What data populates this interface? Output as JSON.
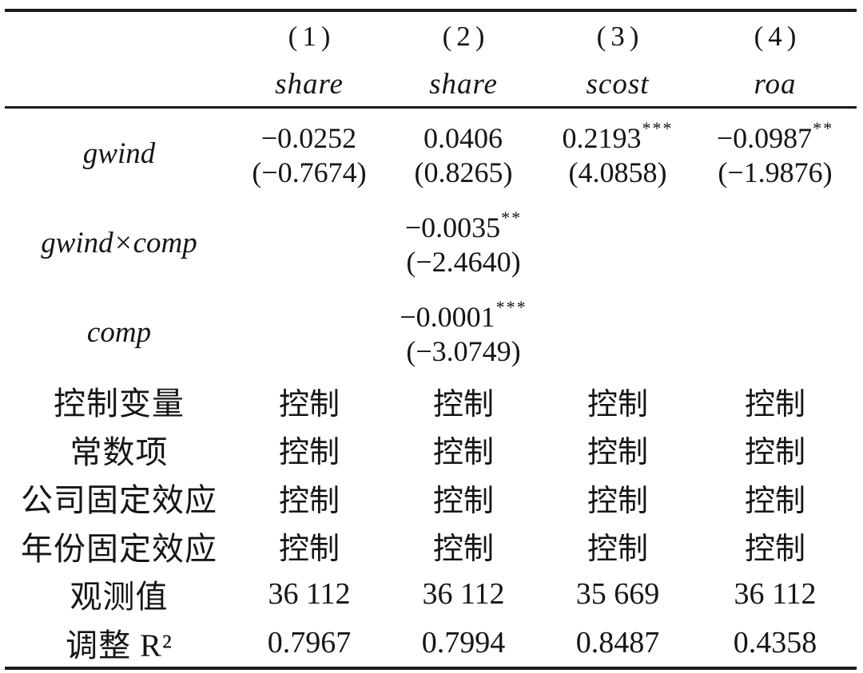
{
  "colors": {
    "background": "#ffffff",
    "text": "#151515",
    "rule": "#1b1b1b"
  },
  "header": {
    "model_numbers": [
      "(1)",
      "(2)",
      "(3)",
      "(4)"
    ],
    "dep_vars": [
      "share",
      "share",
      "scost",
      "roa"
    ]
  },
  "coef_rows": [
    {
      "label": "gwind",
      "cells": [
        {
          "coef": "−0.0252",
          "stars": "",
          "t": "(−0.7674)"
        },
        {
          "coef": "0.0406",
          "stars": "",
          "t": "(0.8265)"
        },
        {
          "coef": "0.2193",
          "stars": "***",
          "t": "(4.0858)"
        },
        {
          "coef": "−0.0987",
          "stars": "**",
          "t": "(−1.9876)"
        }
      ]
    },
    {
      "label": "gwind×comp",
      "cells": [
        {
          "coef": "",
          "stars": "",
          "t": ""
        },
        {
          "coef": "−0.0035",
          "stars": "**",
          "t": "(−2.4640)"
        },
        {
          "coef": "",
          "stars": "",
          "t": ""
        },
        {
          "coef": "",
          "stars": "",
          "t": ""
        }
      ]
    },
    {
      "label": "comp",
      "cells": [
        {
          "coef": "",
          "stars": "",
          "t": ""
        },
        {
          "coef": "−0.0001",
          "stars": "***",
          "t": "(−3.0749)"
        },
        {
          "coef": "",
          "stars": "",
          "t": ""
        },
        {
          "coef": "",
          "stars": "",
          "t": ""
        }
      ]
    }
  ],
  "info_rows": [
    {
      "label": "控制变量",
      "values": [
        "控制",
        "控制",
        "控制",
        "控制"
      ]
    },
    {
      "label": "常数项",
      "values": [
        "控制",
        "控制",
        "控制",
        "控制"
      ]
    },
    {
      "label": "公司固定效应",
      "values": [
        "控制",
        "控制",
        "控制",
        "控制"
      ]
    },
    {
      "label": "年份固定效应",
      "values": [
        "控制",
        "控制",
        "控制",
        "控制"
      ]
    },
    {
      "label": "观测值",
      "values": [
        "36 112",
        "36 112",
        "35 669",
        "36 112"
      ]
    },
    {
      "label": "调整 R²",
      "values": [
        "0.7967",
        "0.7994",
        "0.8487",
        "0.4358"
      ]
    }
  ]
}
